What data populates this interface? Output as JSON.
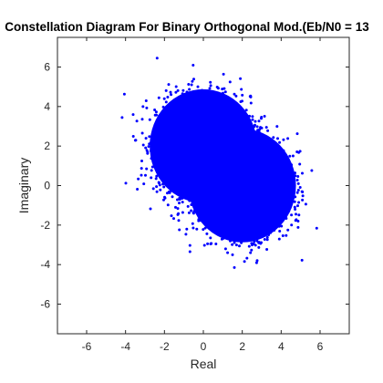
{
  "chart_data": {
    "type": "scatter",
    "title": "Constellation Diagram For Binary Orthogonal Mod.(Eb/N0 = 13",
    "xlabel": "Real",
    "ylabel": "Imaginary",
    "xlim": [
      -7.5,
      7.5
    ],
    "ylim": [
      -7.5,
      7.5
    ],
    "xticks": [
      "-6",
      "-4",
      "-2",
      "0",
      "2",
      "4",
      "6"
    ],
    "yticks": [
      "-6",
      "-4",
      "-2",
      "0",
      "2",
      "4",
      "6"
    ],
    "grid": false,
    "marker_color": "#0000ff",
    "series": [
      {
        "clusters": [
          {
            "center": [
              0,
              2
            ],
            "spread": [
              1.2,
              1.25
            ]
          },
          {
            "center": [
              2,
              0
            ],
            "spread": [
              1.2,
              1.25
            ]
          }
        ],
        "range_x": [
          -4.3,
          6.9
        ],
        "range_y": [
          -4.6,
          6.9
        ]
      }
    ]
  }
}
